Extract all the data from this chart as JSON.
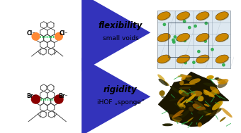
{
  "bg_color": "#ffffff",
  "arrow_color": "#3333bb",
  "top_label": "flexibility",
  "top_sublabel": "small voids",
  "bot_label": "rigidity",
  "bot_sublabel": "iHOF „sponge“",
  "cl_color": "#ff8833",
  "br_color": "#8b0000",
  "mol_line_color": "#444444",
  "hbond_color": "#00cc44",
  "crystal_top_bg": "#dde8f0",
  "crystal_ellipse_color": "#cc8800",
  "crystal_green": "#22aa44",
  "title_fontsize": 8.5,
  "sub_fontsize": 6.5
}
